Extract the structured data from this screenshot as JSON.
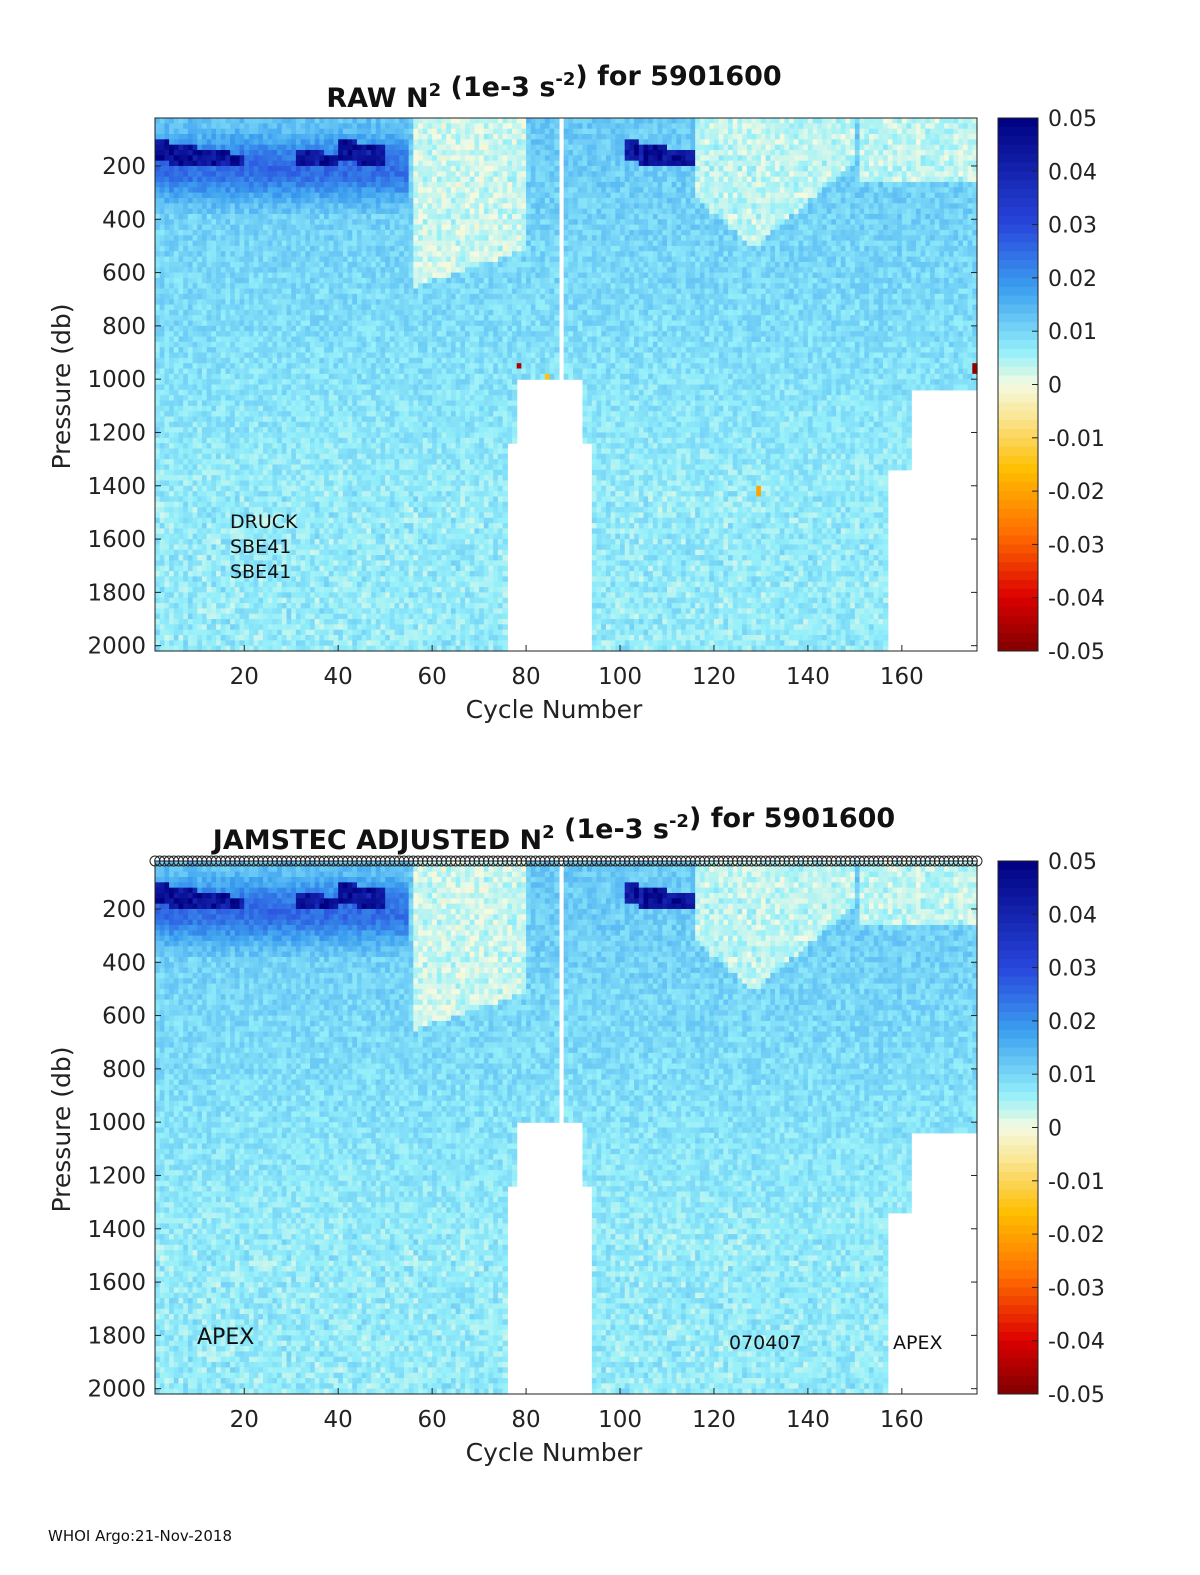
{
  "footer": "WHOI Argo:21-Nov-2018",
  "chart_data": [
    {
      "type": "heatmap",
      "title_prefix": "RAW N",
      "title_exp": "2",
      "title_mid": " (1e-3 s",
      "title_exp2": "-2",
      "title_suffix": ") for 5901600",
      "xlabel": "Cycle Number",
      "ylabel": "Pressure (db)",
      "xlim": [
        1,
        176
      ],
      "ylim": [
        2020,
        20
      ],
      "xticks": [
        20,
        40,
        60,
        80,
        100,
        120,
        140,
        160
      ],
      "yticks": [
        200,
        400,
        600,
        800,
        1000,
        1200,
        1400,
        1600,
        1800,
        2000
      ],
      "colorbar": {
        "min": -0.05,
        "max": 0.05,
        "ticks": [
          "0.05",
          "0.04",
          "0.03",
          "0.02",
          "0.01",
          "0",
          "-0.01",
          "-0.02",
          "-0.03",
          "-0.04",
          "-0.05"
        ]
      },
      "annotations": [
        "DRUCK",
        "SBE41",
        "SBE41"
      ],
      "cycle_markers": false
    },
    {
      "type": "heatmap",
      "title_prefix": "JAMSTEC  ADJUSTED N",
      "title_exp": "2",
      "title_mid": " (1e-3 s",
      "title_exp2": "-2",
      "title_suffix": ") for 5901600",
      "xlabel": "Cycle Number",
      "ylabel": "Pressure (db)",
      "xlim": [
        1,
        176
      ],
      "ylim": [
        2020,
        20
      ],
      "xticks": [
        20,
        40,
        60,
        80,
        100,
        120,
        140,
        160
      ],
      "yticks": [
        200,
        400,
        600,
        800,
        1000,
        1200,
        1400,
        1600,
        1800,
        2000
      ],
      "colorbar": {
        "min": -0.05,
        "max": 0.05,
        "ticks": [
          "0.05",
          "0.04",
          "0.03",
          "0.02",
          "0.01",
          "0",
          "-0.01",
          "-0.02",
          "-0.03",
          "-0.04",
          "-0.05"
        ]
      },
      "annotations": [
        "APEX",
        "070407",
        "APEX"
      ],
      "cycle_markers": true
    }
  ]
}
